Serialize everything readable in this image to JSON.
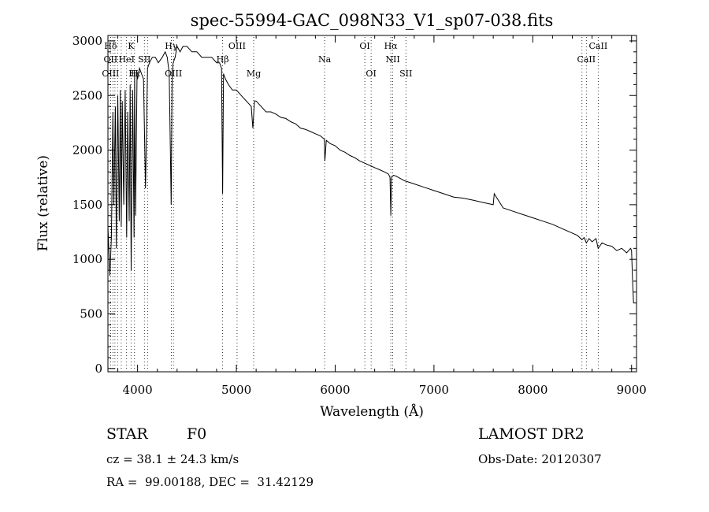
{
  "chart_data": {
    "type": "line",
    "title": "spec-55994-GAC_098N33_V1_sp07-038.fits",
    "xlabel": "Wavelength (Å)",
    "ylabel": "Flux (relative)",
    "xlim": [
      3700,
      9050
    ],
    "ylim": [
      -30,
      3050
    ],
    "x_ticks": [
      4000,
      5000,
      6000,
      7000,
      8000,
      9000
    ],
    "x_tick_labels": [
      "4000",
      "5000",
      "6000",
      "7000",
      "8000",
      "9000"
    ],
    "y_ticks": [
      0,
      500,
      1000,
      1500,
      2000,
      2500,
      3000
    ],
    "y_tick_labels": [
      "0",
      "500",
      "1000",
      "1500",
      "2000",
      "2500",
      "3000"
    ],
    "grid": false,
    "series": [
      {
        "x": [
          3700,
          3720,
          3735,
          3750,
          3760,
          3775,
          3785,
          3800,
          3815,
          3825,
          3835,
          3845,
          3860,
          3875,
          3890,
          3900,
          3915,
          3925,
          3935,
          3950,
          3965,
          3970,
          3980,
          3995,
          4000,
          4020,
          4040,
          4060,
          4080,
          4101,
          4120,
          4150,
          4180,
          4210,
          4250,
          4280,
          4300,
          4320,
          4340,
          4350,
          4360,
          4380,
          4400,
          4430,
          4460,
          4500,
          4550,
          4600,
          4650,
          4700,
          4750,
          4800,
          4830,
          4850,
          4861,
          4870,
          4890,
          4920,
          4960,
          5000,
          5050,
          5100,
          5150,
          5167,
          5183,
          5200,
          5250,
          5300,
          5350,
          5400,
          5450,
          5500,
          5550,
          5600,
          5650,
          5700,
          5750,
          5800,
          5850,
          5890,
          5896,
          5910,
          5950,
          6000,
          6050,
          6100,
          6150,
          6200,
          6250,
          6300,
          6350,
          6400,
          6450,
          6500,
          6540,
          6555,
          6563,
          6570,
          6590,
          6620,
          6700,
          6800,
          6900,
          7000,
          7100,
          7200,
          7300,
          7400,
          7500,
          7600,
          7610,
          7700,
          7800,
          7900,
          8000,
          8100,
          8200,
          8300,
          8400,
          8450,
          8498,
          8520,
          8542,
          8570,
          8600,
          8640,
          8662,
          8700,
          8750,
          8800,
          8850,
          8900,
          8950,
          8990,
          9000,
          9010,
          9020
        ],
        "y": [
          1300,
          850,
          1200,
          2350,
          1500,
          2400,
          1100,
          2500,
          1350,
          2550,
          1300,
          2450,
          1500,
          2550,
          1200,
          2350,
          1350,
          2600,
          900,
          2550,
          1200,
          2700,
          1400,
          2700,
          2650,
          2750,
          2700,
          2650,
          1650,
          2750,
          2800,
          2850,
          2850,
          2800,
          2850,
          2900,
          2850,
          2700,
          1500,
          2700,
          2800,
          2850,
          2950,
          2900,
          2950,
          2950,
          2900,
          2900,
          2850,
          2850,
          2850,
          2800,
          2800,
          2750,
          1600,
          2700,
          2650,
          2600,
          2550,
          2550,
          2500,
          2450,
          2400,
          2200,
          2450,
          2450,
          2400,
          2350,
          2350,
          2330,
          2300,
          2290,
          2260,
          2240,
          2200,
          2190,
          2170,
          2150,
          2130,
          2100,
          1900,
          2090,
          2060,
          2040,
          2000,
          1980,
          1950,
          1930,
          1900,
          1880,
          1860,
          1840,
          1820,
          1800,
          1780,
          1750,
          1400,
          1750,
          1770,
          1760,
          1720,
          1690,
          1660,
          1630,
          1600,
          1570,
          1560,
          1540,
          1520,
          1500,
          1600,
          1470,
          1440,
          1410,
          1380,
          1350,
          1320,
          1280,
          1240,
          1220,
          1180,
          1200,
          1150,
          1190,
          1160,
          1190,
          1100,
          1150,
          1130,
          1120,
          1080,
          1100,
          1060,
          1100,
          1080,
          800,
          600
        ]
      }
    ],
    "lines": [
      {
        "label": "Hδ",
        "x": 3727,
        "row": 0
      },
      {
        "label": "OII",
        "x": 3727,
        "row": 1
      },
      {
        "label": "OIII",
        "x": 3727,
        "row": 2
      },
      {
        "label": "K",
        "x": 3934,
        "row": 0
      },
      {
        "label": "HeI",
        "x": 3889,
        "row": 1
      },
      {
        "label": "Hε",
        "x": 3970,
        "row": 2
      },
      {
        "label": "SII",
        "x": 4069,
        "row": 1
      },
      {
        "label": "H",
        "x": 3969,
        "row": 2
      },
      {
        "label": "Hγ",
        "x": 4341,
        "row": 0
      },
      {
        "label": "OIII",
        "x": 4363,
        "row": 2
      },
      {
        "label": "OIII",
        "x": 5007,
        "row": 0
      },
      {
        "label": "Hβ",
        "x": 4861,
        "row": 1
      },
      {
        "label": "Mg",
        "x": 5175,
        "row": 2
      },
      {
        "label": "Na",
        "x": 5893,
        "row": 1
      },
      {
        "label": "OI",
        "x": 6300,
        "row": 0
      },
      {
        "label": "OI",
        "x": 6364,
        "row": 2
      },
      {
        "label": "Hα",
        "x": 6563,
        "row": 0
      },
      {
        "label": "NII",
        "x": 6583,
        "row": 1
      },
      {
        "label": "SII",
        "x": 6716,
        "row": 2
      },
      {
        "label": "CaII",
        "x": 8662,
        "row": 0
      },
      {
        "label": "CaII",
        "x": 8542,
        "row": 1
      }
    ],
    "line_markers": [
      3727,
      3750,
      3771,
      3798,
      3835,
      3889,
      3934,
      3969,
      4069,
      4101,
      4341,
      4363,
      4861,
      5007,
      5175,
      5893,
      6300,
      6364,
      6563,
      6583,
      6716,
      8498,
      8542,
      8662
    ]
  },
  "info": {
    "object_class": "STAR",
    "subclass": "F0",
    "cz": "cz = 38.1 ± 24.3 km/s",
    "coords": "RA =  99.00188, DEC =  31.42129",
    "survey": "LAMOST DR2",
    "obs_date": "Obs-Date: 20120307"
  }
}
